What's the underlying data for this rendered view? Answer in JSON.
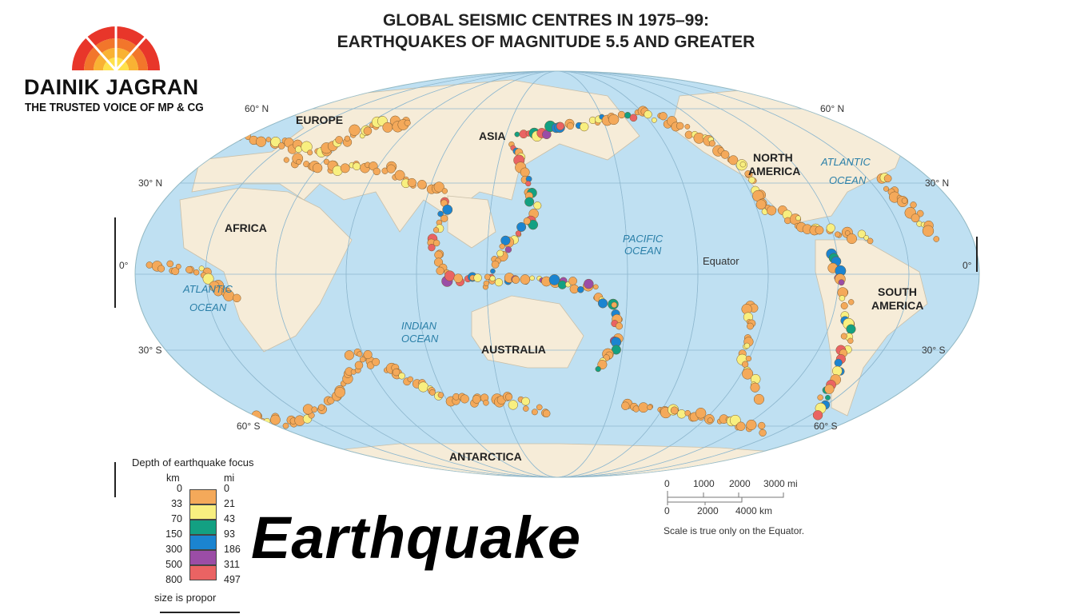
{
  "title": {
    "line1": "GLOBAL SEISMIC CENTRES IN 1975–99:",
    "line2": "EARTHQUAKES OF MAGNITUDE 5.5 AND GREATER"
  },
  "logo": {
    "name": "DAINIK JAGRAN",
    "tagline": "THE TRUSTED VOICE OF MP & CG",
    "colors": [
      "#e8362a",
      "#f2762b",
      "#f9b233",
      "#ffe14a"
    ]
  },
  "map": {
    "continents": {
      "europe": "EUROPE",
      "asia": "ASIA",
      "africa": "AFRICA",
      "north_america_l1": "NORTH",
      "north_america_l2": "AMERICA",
      "south_america_l1": "SOUTH",
      "south_america_l2": "AMERICA",
      "australia": "AUSTRALIA",
      "antarctica": "ANTARCTICA"
    },
    "oceans": {
      "pacific_l1": "PACIFIC",
      "pacific_l2": "OCEAN",
      "atlantic_l1": "ATLANTIC",
      "atlantic_l2": "OCEAN",
      "indian_l1": "INDIAN",
      "indian_l2": "OCEAN"
    },
    "equator": "Equator",
    "latitudes": {
      "n60": "60° N",
      "n30": "30° N",
      "eq": "0°",
      "s30": "30° S",
      "s60": "60° S"
    },
    "colors": {
      "ocean": "#bfe0f2",
      "land": "#f6ecd8"
    }
  },
  "legend": {
    "title": "Depth of earthquake focus",
    "km_label": "km",
    "mi_label": "mi",
    "km": [
      "0",
      "33",
      "70",
      "150",
      "300",
      "500",
      "800"
    ],
    "mi": [
      "0",
      "21",
      "43",
      "93",
      "186",
      "311",
      "497"
    ],
    "colors": [
      "#f4a95a",
      "#f8ef80",
      "#13a082",
      "#1b84d0",
      "#9b4da6",
      "#ea6363"
    ],
    "note": "size is propor"
  },
  "scale": {
    "mi": [
      "0",
      "1000",
      "2000",
      "3000 mi"
    ],
    "km": [
      "0",
      "2000",
      "4000 km"
    ],
    "note": "Scale is  true only on the Equator."
  },
  "caption": "Earthquake"
}
